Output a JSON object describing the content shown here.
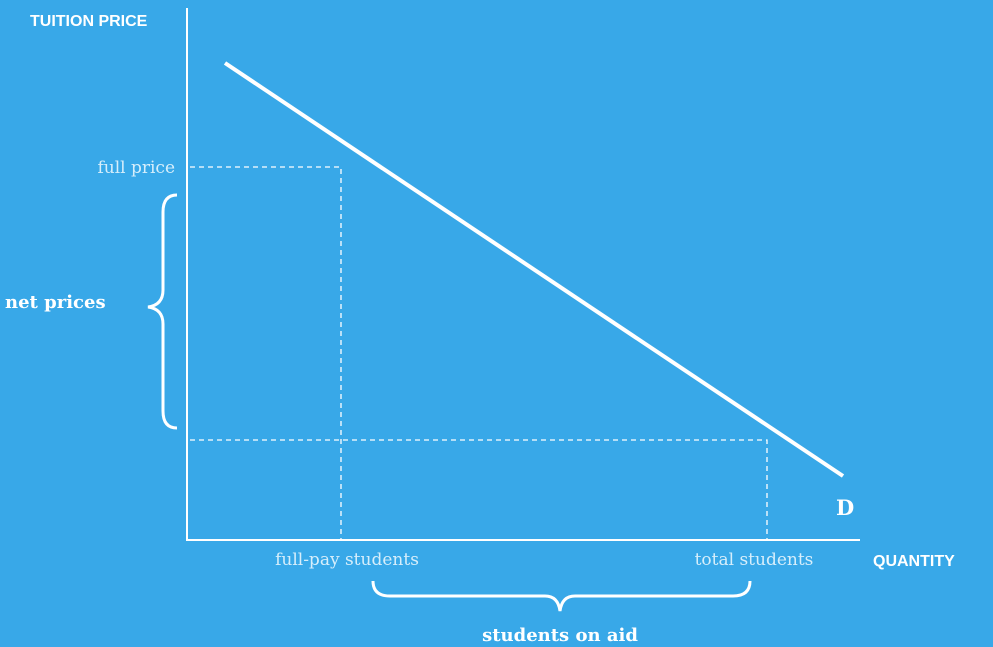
{
  "axes": {
    "y_label": "TUITION PRICE",
    "x_label": "QUANTITY"
  },
  "curve": {
    "label": "D"
  },
  "annotations": {
    "full_price": "full price",
    "net_prices": "net prices",
    "full_pay_students": "full-pay students",
    "total_students": "total students",
    "students_on_aid": "students on aid"
  }
}
